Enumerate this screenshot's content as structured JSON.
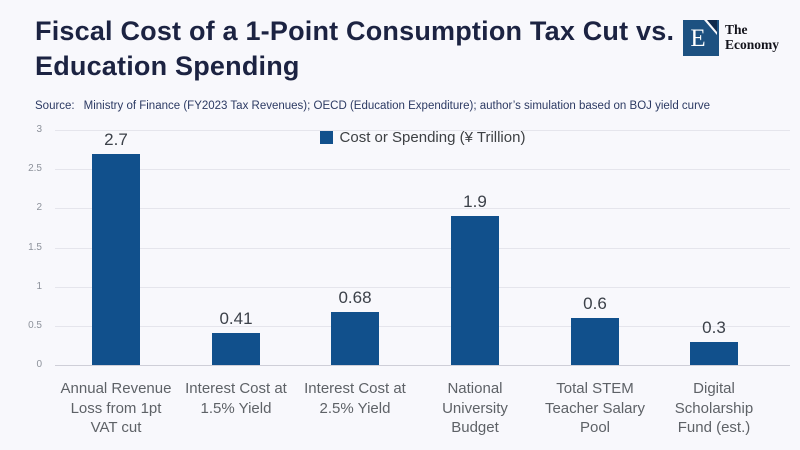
{
  "page": {
    "background": "#f8f8fc"
  },
  "header": {
    "title_line1": "Fiscal Cost of a 1-Point Consumption Tax Cut vs.",
    "title_line2": "Education Spending",
    "source_label": "Source:",
    "source_text": "Ministry of Finance (FY2023 Tax Revenues); OECD (Education Expenditure); author’s simulation based on BOJ yield curve"
  },
  "logo": {
    "letter": "E",
    "name_line1": "The",
    "name_line2": "Economy",
    "square_color": "#1d5181",
    "flag_color": "#102a4c",
    "text_color": "#14141c"
  },
  "legend": {
    "label": "Cost or Spending (¥ Trillion)",
    "swatch_color": "#11508c"
  },
  "chart_data": {
    "type": "bar",
    "title": "Fiscal Cost of a 1-Point Consumption Tax Cut vs. Education Spending",
    "series_name": "Cost or Spending (¥ Trillion)",
    "categories": [
      "Annual Revenue Loss from 1pt VAT cut",
      "Interest Cost at 1.5% Yield",
      "Interest Cost at 2.5% Yield",
      "National University Budget",
      "Total STEM Teacher Salary Pool",
      "Digital Scholarship Fund (est.)"
    ],
    "category_lines": [
      [
        "Annual Revenue",
        "Loss from 1pt",
        "VAT cut"
      ],
      [
        "Interest Cost at",
        "1.5% Yield"
      ],
      [
        "Interest Cost at",
        "2.5% Yield"
      ],
      [
        "National",
        "University",
        "Budget"
      ],
      [
        "Total STEM",
        "Teacher Salary",
        "Pool"
      ],
      [
        "Digital",
        "Scholarship",
        "Fund (est.)"
      ]
    ],
    "values": [
      2.7,
      0.41,
      0.68,
      1.9,
      0.6,
      0.3
    ],
    "value_labels": [
      "2.7",
      "0.41",
      "0.68",
      "1.9",
      "0.6",
      "0.3"
    ],
    "xlabel": "",
    "ylabel": "",
    "ylim": [
      0,
      3
    ],
    "yticks": [
      0,
      0.5,
      1,
      1.5,
      2,
      2.5,
      3
    ],
    "ytick_labels": [
      "0",
      "0.5",
      "1",
      "1.5",
      "2",
      "2.5",
      "3"
    ],
    "grid": true,
    "bar_color": "#11508c",
    "legend_position": "top"
  }
}
